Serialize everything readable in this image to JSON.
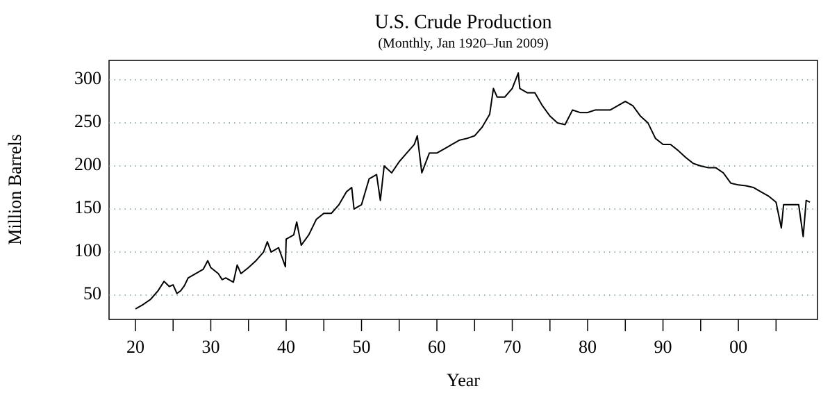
{
  "chart_data": {
    "type": "line",
    "title": "U.S. Crude Production",
    "subtitle": "(Monthly, Jan 1920–Jun 2009)",
    "xlabel": "Year",
    "ylabel": "Million Barrels",
    "color": "#000000",
    "x": [
      1920,
      1921,
      1922,
      1923,
      1923.8,
      1924.5,
      1925,
      1925.5,
      1926,
      1926.5,
      1927,
      1928,
      1929,
      1929.6,
      1930,
      1931,
      1931.5,
      1932,
      1933,
      1933.5,
      1934,
      1935,
      1936,
      1937,
      1937.5,
      1938,
      1939,
      1939.9,
      1940,
      1941,
      1941.4,
      1942,
      1943,
      1944,
      1945,
      1946,
      1947,
      1948,
      1948.7,
      1949,
      1950,
      1951,
      1952,
      1952.5,
      1953,
      1954,
      1955,
      1956,
      1957,
      1957.4,
      1958,
      1959,
      1960,
      1961,
      1962,
      1963,
      1964,
      1965,
      1966,
      1967,
      1967.5,
      1968,
      1969,
      1970,
      1970.8,
      1971,
      1972,
      1973,
      1974,
      1975,
      1976,
      1977,
      1978,
      1979,
      1980,
      1981,
      1982,
      1983,
      1984,
      1985,
      1986,
      1987,
      1988,
      1989,
      1990,
      1991,
      1992,
      1993,
      1994,
      1995,
      1996,
      1997,
      1998,
      1999,
      2000,
      2001,
      2002,
      2003,
      2004,
      2005,
      2005.7,
      2006,
      2007,
      2008,
      2008.6,
      2009,
      2009.5
    ],
    "values": [
      34,
      39,
      45,
      55,
      66,
      60,
      62,
      52,
      55,
      61,
      70,
      75,
      80,
      90,
      82,
      75,
      68,
      70,
      65,
      85,
      75,
      82,
      90,
      100,
      112,
      100,
      105,
      83,
      115,
      120,
      135,
      108,
      120,
      138,
      145,
      145,
      155,
      170,
      175,
      150,
      155,
      185,
      190,
      160,
      200,
      192,
      205,
      215,
      225,
      235,
      192,
      215,
      215,
      220,
      225,
      230,
      232,
      235,
      245,
      260,
      290,
      280,
      280,
      290,
      308,
      290,
      285,
      285,
      270,
      258,
      250,
      248,
      265,
      262,
      262,
      265,
      265,
      265,
      270,
      275,
      270,
      258,
      250,
      232,
      225,
      225,
      218,
      210,
      203,
      200,
      198,
      198,
      192,
      180,
      178,
      177,
      175,
      170,
      165,
      158,
      128,
      155,
      155,
      155,
      118,
      160,
      158
    ],
    "xlim": [
      1916.5,
      2010.5
    ],
    "ylim": [
      21.8,
      322.6
    ],
    "xticks": [
      {
        "value": 1920,
        "label": "20"
      },
      {
        "value": 1930,
        "label": "30"
      },
      {
        "value": 1940,
        "label": "40"
      },
      {
        "value": 1950,
        "label": "50"
      },
      {
        "value": 1960,
        "label": "60"
      },
      {
        "value": 1970,
        "label": "70"
      },
      {
        "value": 1980,
        "label": "80"
      },
      {
        "value": 1990,
        "label": "90"
      },
      {
        "value": 2000,
        "label": "00"
      }
    ],
    "xminorticks": [
      1925,
      1935,
      1945,
      1955,
      1965,
      1975,
      1985,
      1995,
      2005
    ],
    "yticks": [
      50,
      100,
      150,
      200,
      250,
      300
    ],
    "grid": true
  }
}
